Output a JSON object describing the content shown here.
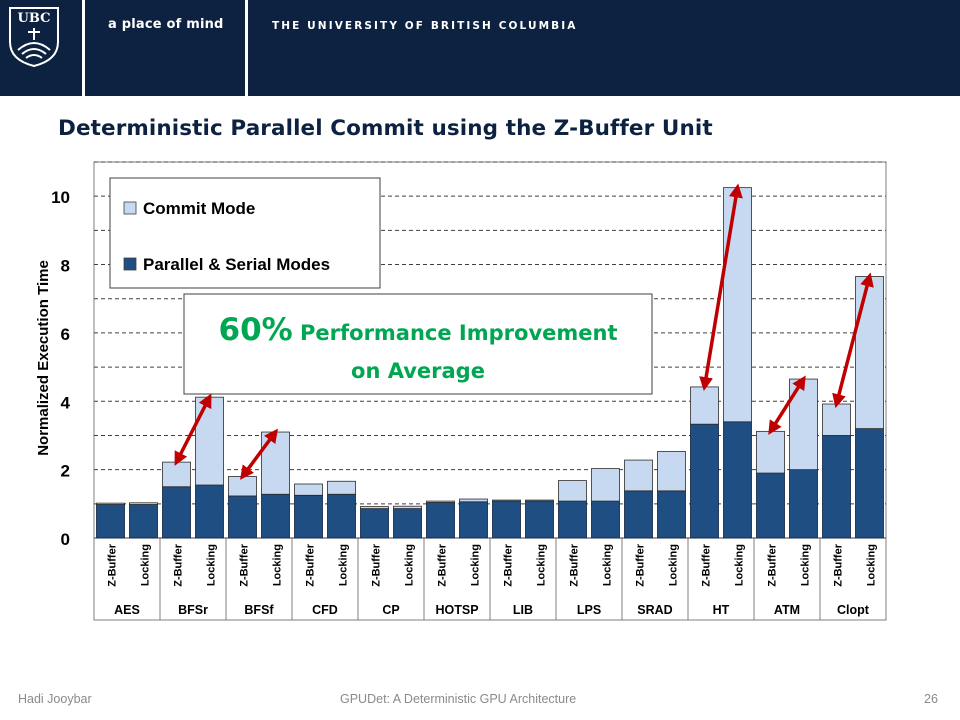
{
  "header": {
    "logo_text": "UBC",
    "tagline": "a place of mind",
    "university": "THE UNIVERSITY OF BRITISH COLUMBIA"
  },
  "slide": {
    "title": "Deterministic Parallel Commit using the Z-Buffer Unit"
  },
  "colors": {
    "banner": "#0d2240",
    "parallel_serial": "#1f4e83",
    "commit": "#c6d9f1",
    "arrow": "#c00000",
    "callout_text": "#00a651"
  },
  "chart_data": {
    "type": "bar",
    "stacked": true,
    "ylabel": "Normalized Execution Time",
    "ylim": [
      0,
      11
    ],
    "yticks": [
      0,
      2,
      4,
      6,
      8,
      10
    ],
    "grid": "dashed horizontal",
    "legend_position": "top-left",
    "bar_labels": [
      "Z-Buffer",
      "Locking"
    ],
    "groups": [
      "AES",
      "BFSr",
      "BFSf",
      "CFD",
      "CP",
      "HOTSP",
      "LIB",
      "LPS",
      "SRAD",
      "HT",
      "ATM",
      "Clopt"
    ],
    "series": [
      {
        "name": "Parallel & Serial Modes",
        "values": [
          [
            0.98,
            0.98
          ],
          [
            1.5,
            1.55
          ],
          [
            1.23,
            1.28
          ],
          [
            1.25,
            1.28
          ],
          [
            0.86,
            0.86
          ],
          [
            1.04,
            1.06
          ],
          [
            1.08,
            1.08
          ],
          [
            1.08,
            1.08
          ],
          [
            1.38,
            1.38
          ],
          [
            3.33,
            3.4
          ],
          [
            1.9,
            2.0
          ],
          [
            3.0,
            3.2
          ]
        ]
      },
      {
        "name": "Commit Mode",
        "values": [
          [
            0.04,
            0.05
          ],
          [
            0.72,
            2.57
          ],
          [
            0.57,
            1.82
          ],
          [
            0.33,
            0.38
          ],
          [
            0.06,
            0.07
          ],
          [
            0.04,
            0.08
          ],
          [
            0.03,
            0.03
          ],
          [
            0.6,
            0.95
          ],
          [
            0.9,
            1.15
          ],
          [
            1.09,
            6.85
          ],
          [
            1.22,
            2.65
          ],
          [
            0.92,
            4.45
          ]
        ]
      }
    ],
    "callout": {
      "highlight": "60%",
      "line1": " Performance Improvement",
      "line2": "on Average"
    }
  },
  "footer": {
    "author": "Hadi Jooybar",
    "talk": "GPUDet: A Deterministic GPU Architecture",
    "page": "26"
  }
}
